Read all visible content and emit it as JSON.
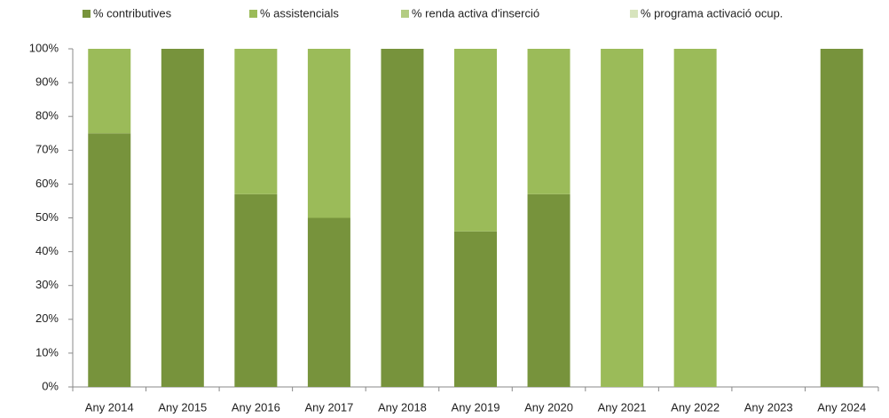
{
  "chart_data": {
    "type": "bar",
    "stacked": true,
    "categories": [
      "Any 2014",
      "Any 2015",
      "Any 2016",
      "Any 2017",
      "Any 2018",
      "Any 2019",
      "Any 2020",
      "Any 2021",
      "Any 2022",
      "Any 2023",
      "Any 2024"
    ],
    "series": [
      {
        "name": "% contributives",
        "color": "#77933c",
        "values": [
          75,
          100,
          57,
          50,
          100,
          46,
          57,
          0,
          0,
          0,
          100
        ]
      },
      {
        "name": "% assistencials",
        "color": "#9bbb59",
        "values": [
          25,
          0,
          43,
          50,
          0,
          54,
          43,
          100,
          100,
          0,
          0
        ]
      },
      {
        "name": "% renda activa d'inserció",
        "color": "#b3cc82",
        "values": [
          0,
          0,
          0,
          0,
          0,
          0,
          0,
          0,
          0,
          0,
          0
        ]
      },
      {
        "name": "% programa activació ocup.",
        "color": "#d7e4bd",
        "values": [
          0,
          0,
          0,
          0,
          0,
          0,
          0,
          0,
          0,
          0,
          0
        ]
      }
    ],
    "ylim": [
      0,
      100
    ],
    "yticks": [
      {
        "value": 0,
        "label": "0%"
      },
      {
        "value": 10,
        "label": "10%"
      },
      {
        "value": 20,
        "label": "20%"
      },
      {
        "value": 30,
        "label": "30%"
      },
      {
        "value": 40,
        "label": "40%"
      },
      {
        "value": 50,
        "label": "50%"
      },
      {
        "value": 60,
        "label": "60%"
      },
      {
        "value": 70,
        "label": "70%"
      },
      {
        "value": 80,
        "label": "80%"
      },
      {
        "value": 90,
        "label": "90%"
      },
      {
        "value": 100,
        "label": "100%"
      }
    ],
    "legend": "top"
  }
}
